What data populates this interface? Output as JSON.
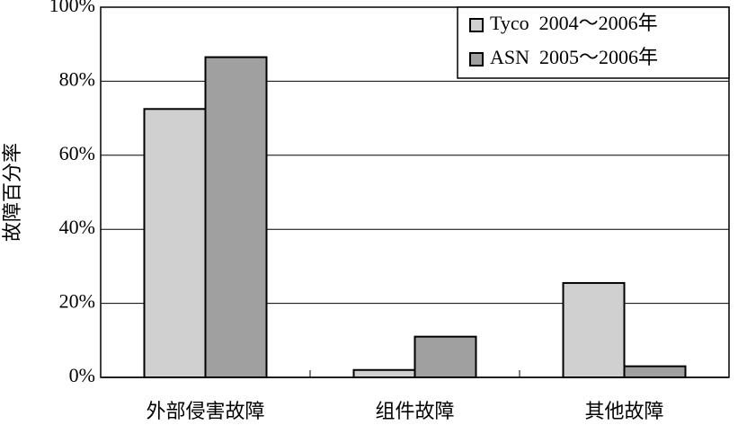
{
  "chart_data": {
    "type": "bar",
    "y_label": "故障百分率",
    "categories": [
      "外部侵害故障",
      "组件故障",
      "其他故障"
    ],
    "series": [
      {
        "name": "Tyco  2004～2006年",
        "color": "#d0d0d0",
        "values": [
          72.5,
          2,
          25.5
        ]
      },
      {
        "name": "ASN  2005～2006年",
        "color": "#a0a0a0",
        "values": [
          86.5,
          11,
          3
        ]
      }
    ],
    "ylim": [
      0,
      100
    ],
    "yticks": [
      {
        "value": 0,
        "label": "0%"
      },
      {
        "value": 20,
        "label": "20%"
      },
      {
        "value": 40,
        "label": "40%"
      },
      {
        "value": 60,
        "label": "60%"
      },
      {
        "value": 80,
        "label": "80%"
      },
      {
        "value": 100,
        "label": "100%"
      }
    ],
    "grid": true,
    "legend": "upper right"
  }
}
